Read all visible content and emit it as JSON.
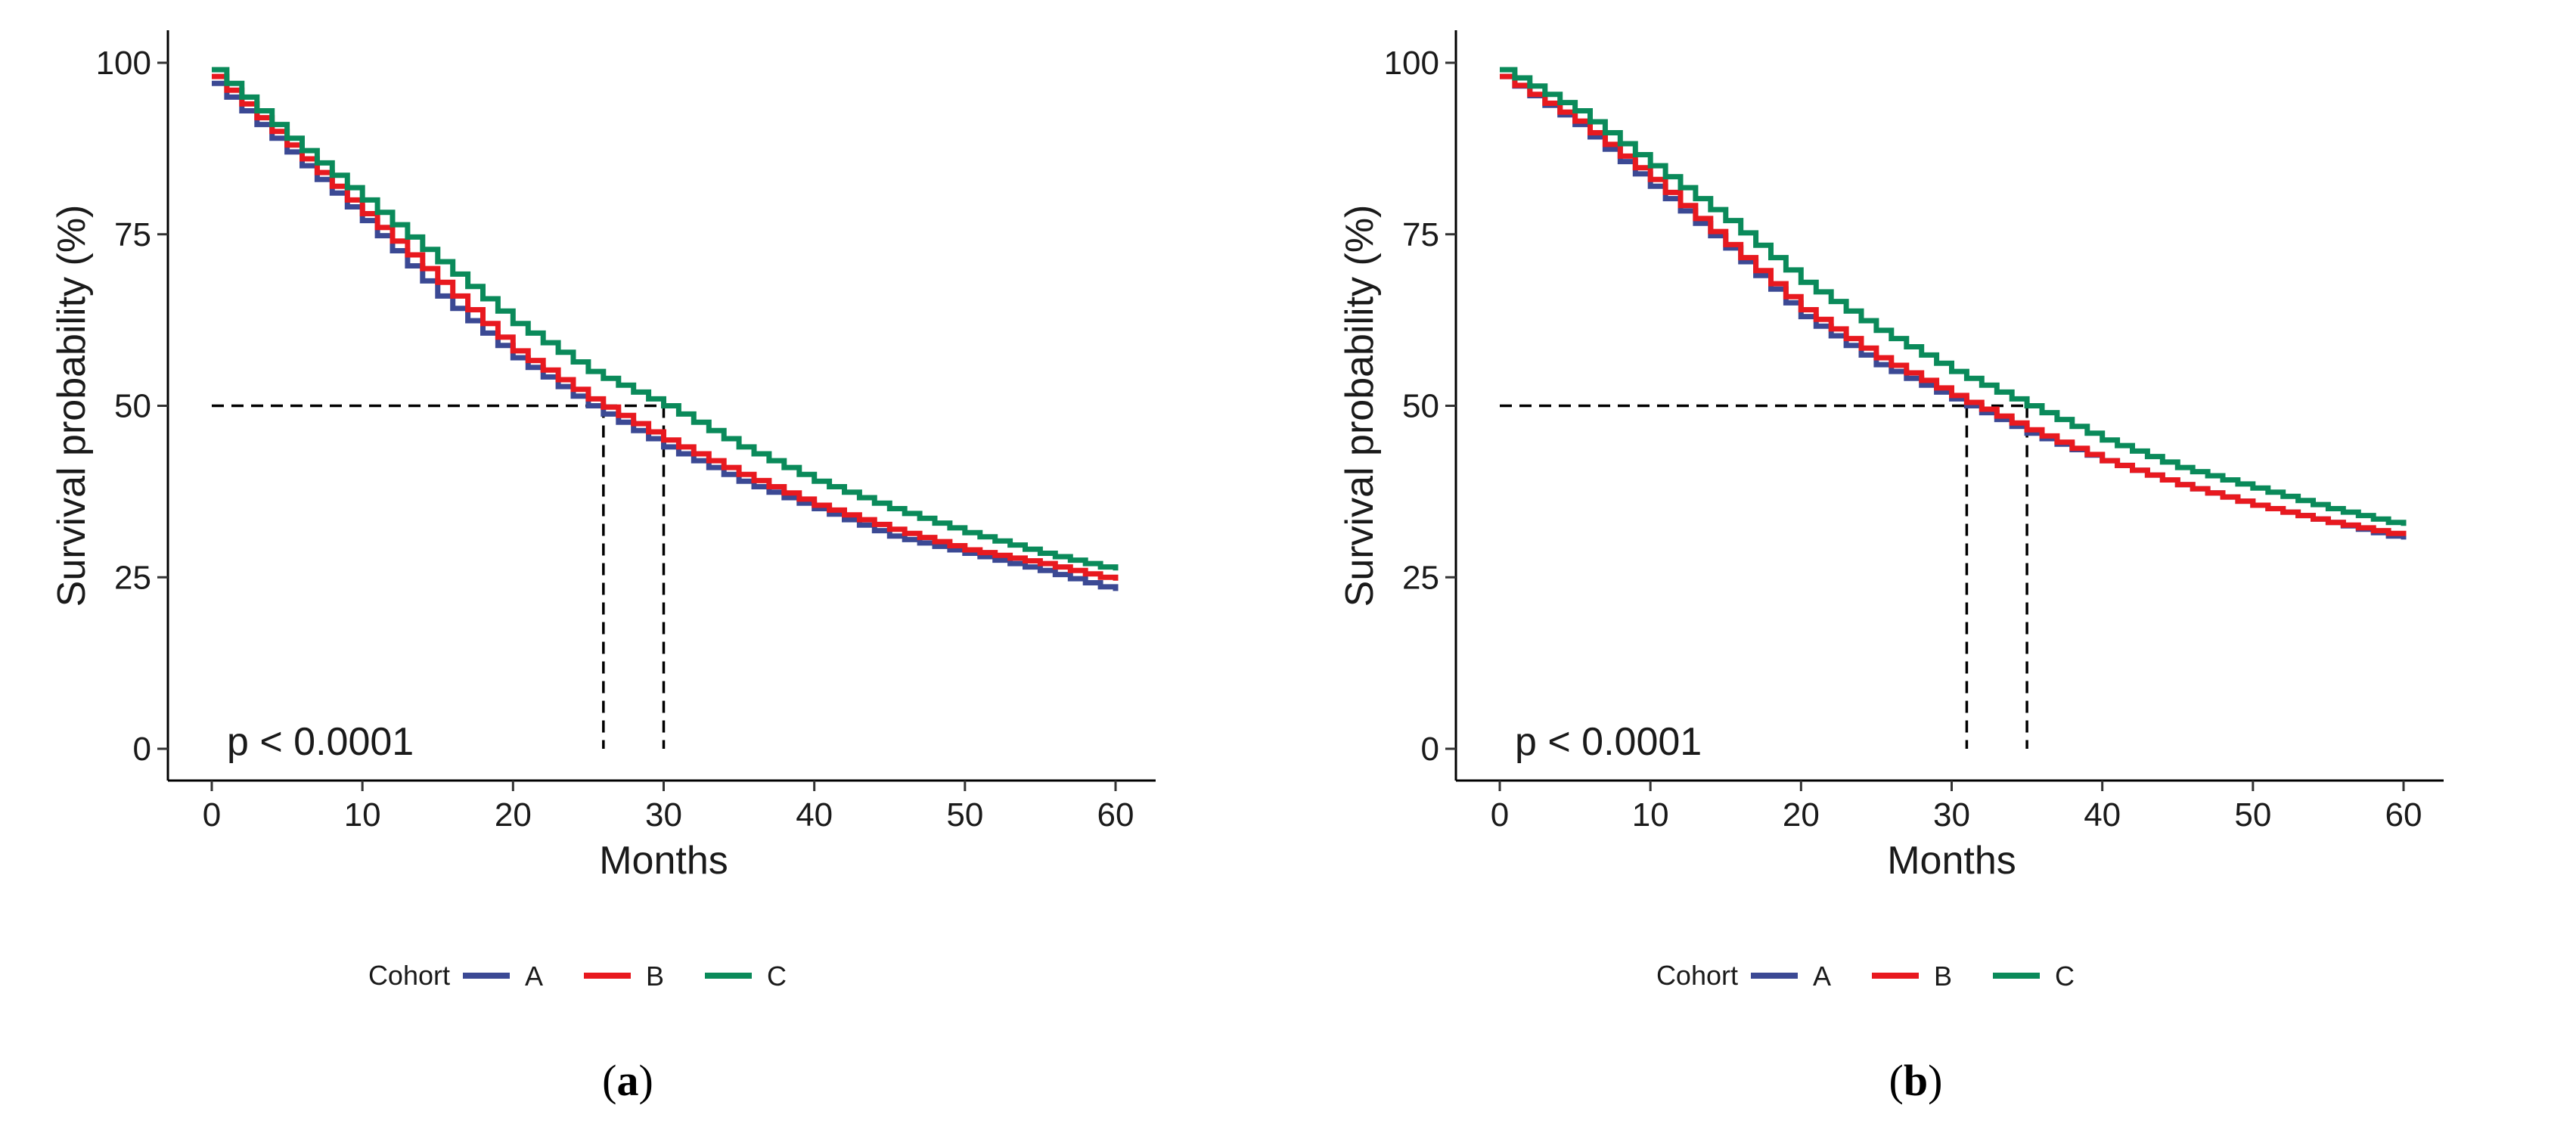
{
  "chart_data": [
    {
      "type": "line",
      "panel_label": "a",
      "xlabel": "Months",
      "ylabel": "Survival probability (%)",
      "xlim": [
        0,
        60
      ],
      "ylim": [
        0,
        100
      ],
      "x_ticks": [
        0,
        10,
        20,
        30,
        40,
        50,
        60
      ],
      "y_ticks": [
        0,
        25,
        50,
        75,
        100
      ],
      "annotation": "p < 0.0001",
      "legend_title": "Cohort",
      "legend_position": "bottom",
      "median_reference": {
        "y": 50,
        "x_values": [
          26,
          30
        ]
      },
      "x": [
        0,
        5,
        10,
        15,
        20,
        25,
        30,
        35,
        40,
        45,
        50,
        55,
        60
      ],
      "series": [
        {
          "name": "A",
          "color": "#3b4994",
          "values": [
            97,
            87,
            77,
            66,
            57,
            50,
            44,
            39,
            35,
            31,
            28.5,
            26,
            23
          ]
        },
        {
          "name": "B",
          "color": "#e8191f",
          "values": [
            98,
            88,
            78,
            68,
            58,
            51,
            45,
            40,
            35.5,
            32,
            29,
            27,
            24.5
          ]
        },
        {
          "name": "C",
          "color": "#0a8a5a",
          "values": [
            99,
            89,
            80,
            71,
            62,
            55,
            50,
            44,
            39,
            35,
            31.5,
            28.5,
            26
          ]
        }
      ]
    },
    {
      "type": "line",
      "panel_label": "b",
      "xlabel": "Months",
      "ylabel": "Survival probability (%)",
      "xlim": [
        0,
        60
      ],
      "ylim": [
        0,
        100
      ],
      "x_ticks": [
        0,
        10,
        20,
        30,
        40,
        50,
        60
      ],
      "y_ticks": [
        0,
        25,
        50,
        75,
        100
      ],
      "annotation": "p < 0.0001",
      "legend_title": "Cohort",
      "legend_position": "bottom",
      "median_reference": {
        "y": 50,
        "x_values": [
          31,
          35
        ]
      },
      "x": [
        0,
        5,
        10,
        15,
        20,
        25,
        30,
        35,
        40,
        45,
        50,
        55,
        60
      ],
      "series": [
        {
          "name": "A",
          "color": "#3b4994",
          "values": [
            98,
            91,
            82,
            73,
            63,
            56,
            51,
            46,
            42,
            38.5,
            35.5,
            33,
            30.5
          ]
        },
        {
          "name": "B",
          "color": "#e8191f",
          "values": [
            98,
            91.5,
            83,
            73.5,
            64,
            57,
            51.5,
            46.5,
            42,
            38.5,
            35.5,
            33,
            31
          ]
        },
        {
          "name": "C",
          "color": "#0a8a5a",
          "values": [
            99,
            93,
            85,
            77,
            68,
            61,
            55,
            50,
            45,
            41,
            38,
            35,
            32.5
          ]
        }
      ]
    }
  ]
}
